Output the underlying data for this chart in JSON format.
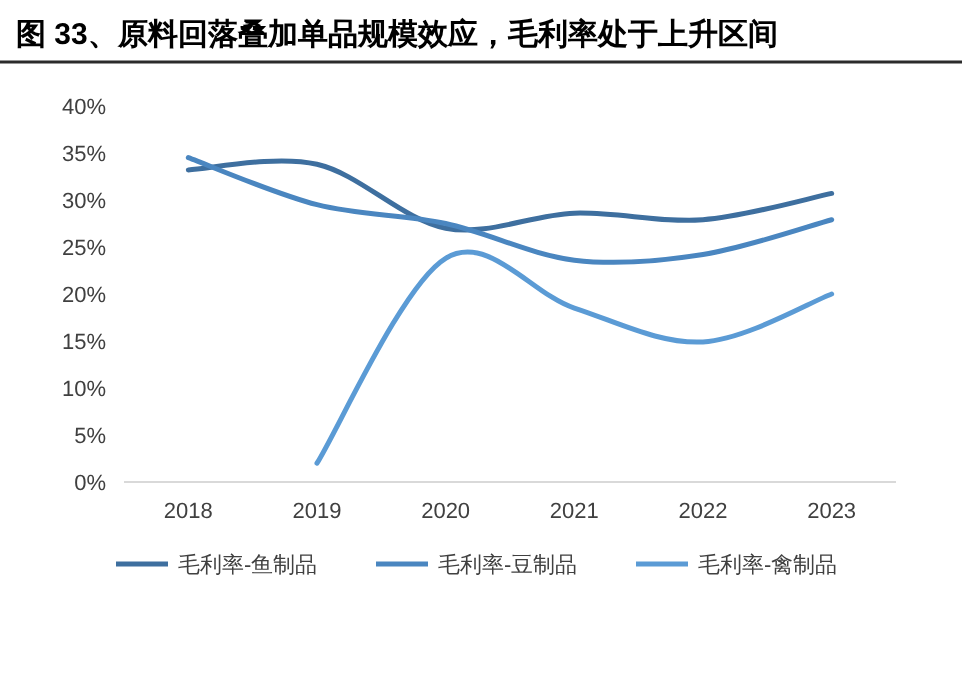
{
  "chart_data": {
    "type": "line",
    "title": "图 33、原料回落叠加单品规模效应，毛利率处于上升区间",
    "categories": [
      "2018",
      "2019",
      "2020",
      "2021",
      "2022",
      "2023"
    ],
    "series": [
      {
        "name": "毛利率-鱼制品",
        "color": "#3e6f9f",
        "values": [
          33.2,
          33.8,
          27.0,
          28.6,
          27.9,
          30.7
        ]
      },
      {
        "name": "毛利率-豆制品",
        "color": "#4a86c0",
        "values": [
          34.5,
          29.5,
          27.5,
          23.6,
          24.2,
          27.9
        ]
      },
      {
        "name": "毛利率-禽制品",
        "color": "#5b9bd5",
        "values": [
          null,
          2.0,
          23.8,
          18.5,
          14.9,
          20.0
        ]
      }
    ],
    "ylim": [
      0,
      40
    ],
    "yticks": [
      {
        "value": 0,
        "label": "0%"
      },
      {
        "value": 5,
        "label": "5%"
      },
      {
        "value": 10,
        "label": "10%"
      },
      {
        "value": 15,
        "label": "15%"
      },
      {
        "value": 20,
        "label": "20%"
      },
      {
        "value": 25,
        "label": "25%"
      },
      {
        "value": 30,
        "label": "30%"
      },
      {
        "value": 35,
        "label": "35%"
      },
      {
        "value": 40,
        "label": "40%"
      }
    ],
    "grid": false,
    "legend": "bottom",
    "marker": "none",
    "line_style": "solid"
  }
}
